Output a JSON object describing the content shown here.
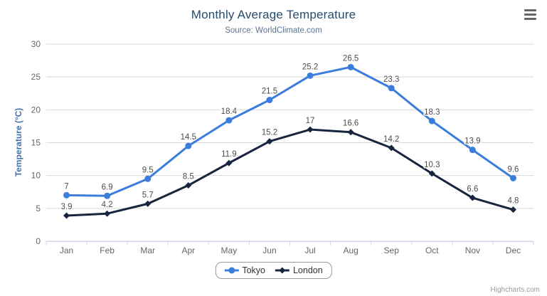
{
  "chart_data": {
    "type": "line",
    "title": "Monthly Average Temperature",
    "subtitle": "Source: WorldClimate.com",
    "xlabel": "",
    "ylabel": "Temperature (°C)",
    "categories": [
      "Jan",
      "Feb",
      "Mar",
      "Apr",
      "May",
      "Jun",
      "Jul",
      "Aug",
      "Sep",
      "Oct",
      "Nov",
      "Dec"
    ],
    "series": [
      {
        "name": "Tokyo",
        "marker": "circle",
        "color": "#3b7ddc",
        "values": [
          7,
          6.9,
          9.5,
          14.5,
          18.4,
          21.5,
          25.2,
          26.5,
          23.3,
          18.3,
          13.9,
          9.6
        ]
      },
      {
        "name": "London",
        "marker": "diamond",
        "color": "#17263e",
        "values": [
          3.9,
          4.2,
          5.7,
          8.5,
          11.9,
          15.2,
          17,
          16.6,
          14.2,
          10.3,
          6.6,
          4.8
        ]
      }
    ],
    "ylim": [
      0,
      30
    ],
    "ytick_step": 5,
    "grid": "horizontal",
    "data_labels": true,
    "legend_position": "bottom-center"
  },
  "colors": {
    "title": "#274b6d",
    "subtitle": "#58749a",
    "y_axis_title": "#4572a7",
    "axis_labels": "#666666",
    "gridline": "#d8d8d8",
    "axis_line": "#ccd6eb",
    "data_label": "#4d4d4d",
    "legend_text": "#333333",
    "credit": "#999999",
    "menu_icon": "#666666",
    "background": "#ffffff"
  },
  "credit": {
    "label": "Highcharts.com"
  },
  "menu": {
    "icon": "hamburger-menu-icon"
  }
}
